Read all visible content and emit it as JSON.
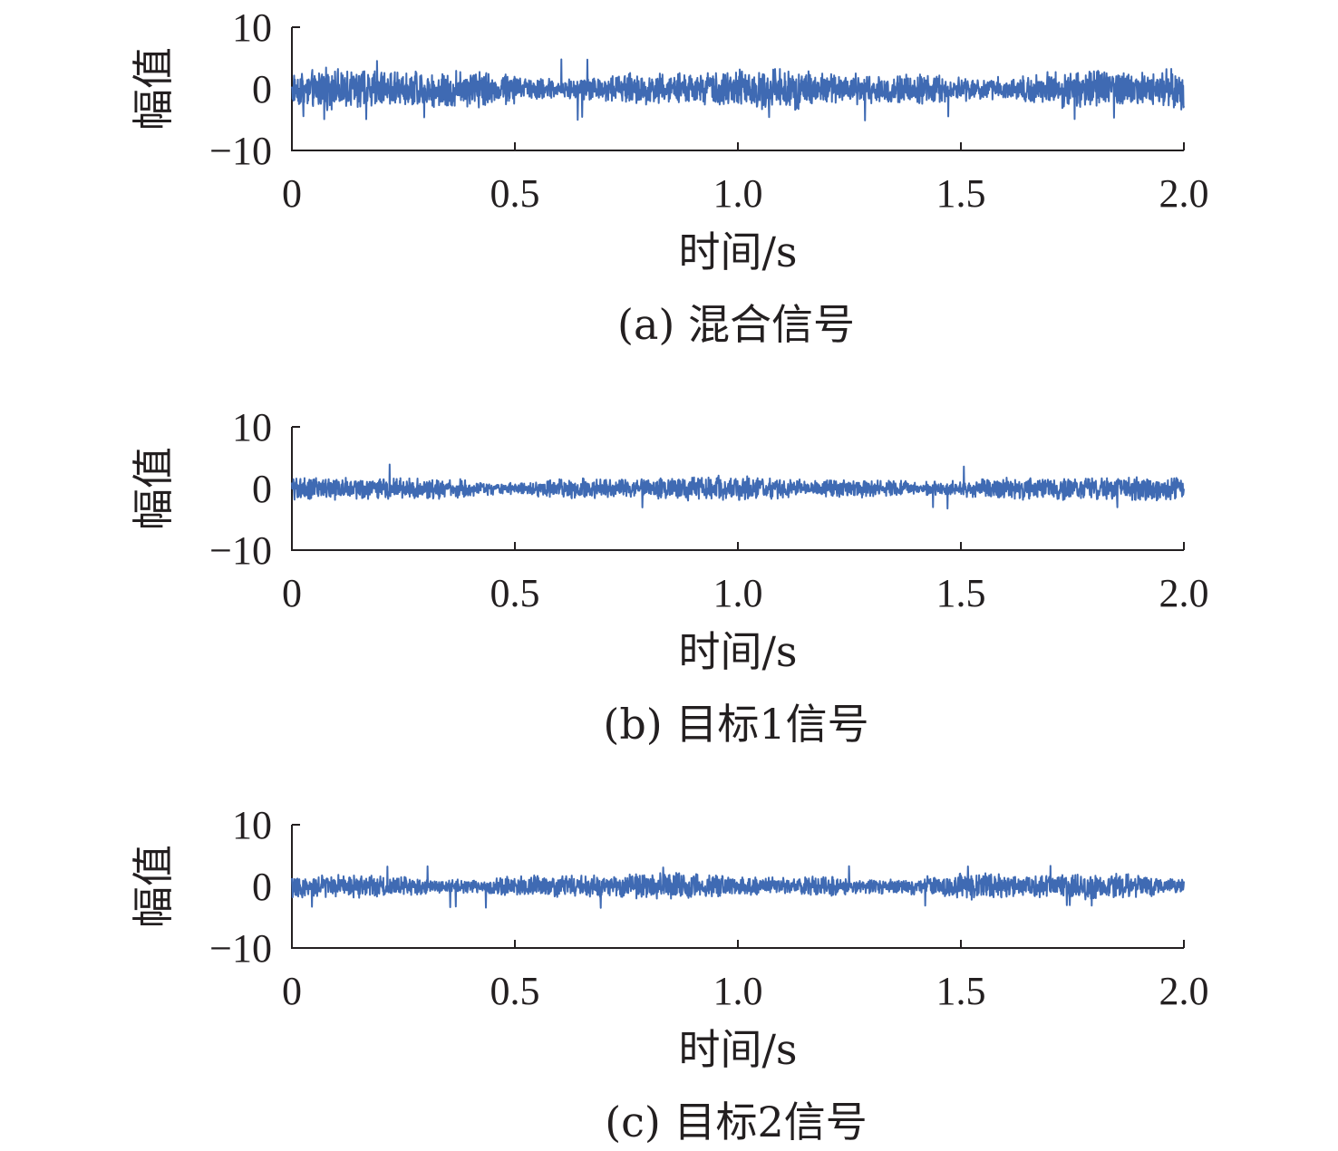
{
  "chart_data": [
    {
      "type": "line",
      "caption": "(a) 混合信号",
      "xlabel": "时间/s",
      "ylabel": "幅值",
      "xlim": [
        0,
        2.0
      ],
      "ylim": [
        -10,
        10
      ],
      "xticks": [
        "0",
        "0.5",
        "1.0",
        "1.5",
        "2.0"
      ],
      "yticks": [
        "10",
        "0",
        "−10"
      ],
      "color": "#3f6ab3",
      "signal": {
        "duration": 2.0,
        "mean": 0,
        "typical_amplitude": 2.5,
        "peak_max": 4.9,
        "peak_min": -5.2
      }
    },
    {
      "type": "line",
      "caption": "(b) 目标1信号",
      "xlabel": "时间/s",
      "ylabel": "幅值",
      "xlim": [
        0,
        2.0
      ],
      "ylim": [
        -10,
        10
      ],
      "xticks": [
        "0",
        "0.5",
        "1.0",
        "1.5",
        "2.0"
      ],
      "yticks": [
        "10",
        "0",
        "−10"
      ],
      "color": "#3f6ab3",
      "signal": {
        "duration": 2.0,
        "mean": 0,
        "typical_amplitude": 1.5,
        "peak_max": 4.0,
        "peak_min": -3.5
      }
    },
    {
      "type": "line",
      "caption": "(c) 目标2信号",
      "xlabel": "时间/s",
      "ylabel": "幅值",
      "xlim": [
        0,
        2.0
      ],
      "ylim": [
        -10,
        10
      ],
      "xticks": [
        "0",
        "0.5",
        "1.0",
        "1.5",
        "2.0"
      ],
      "yticks": [
        "10",
        "0",
        "−10"
      ],
      "color": "#3f6ab3",
      "signal": {
        "duration": 2.0,
        "mean": 0,
        "typical_amplitude": 1.6,
        "peak_max": 3.5,
        "peak_min": -3.5
      }
    }
  ]
}
